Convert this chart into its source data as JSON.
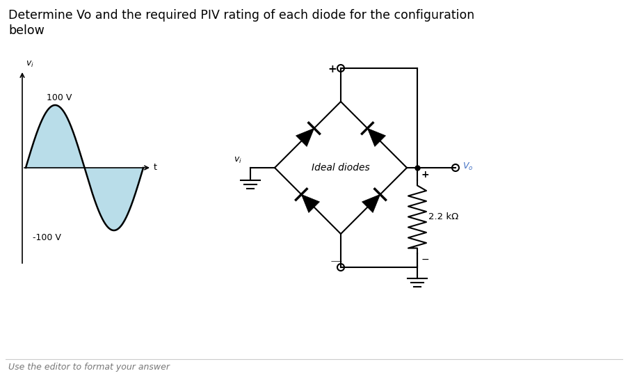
{
  "title_line1": "Determine Vo and the required PIV rating of each diode for the configuration",
  "title_line2": "below",
  "bg_color": "#ffffff",
  "fill_color": "#add8e6",
  "line_color": "#000000",
  "text_color": "#000000",
  "ideal_diodes_label": "Ideal diodes",
  "resistor_label": "2.2 kΩ",
  "vo_label": "$V_o$",
  "vi_label": "$v_i$",
  "sine_pos_label": "100 V",
  "sine_neg_label": "-100 V",
  "t_label": "t",
  "plus_label": "+",
  "minus_label": "−",
  "bottom_text": "Use the editor to format your answer"
}
